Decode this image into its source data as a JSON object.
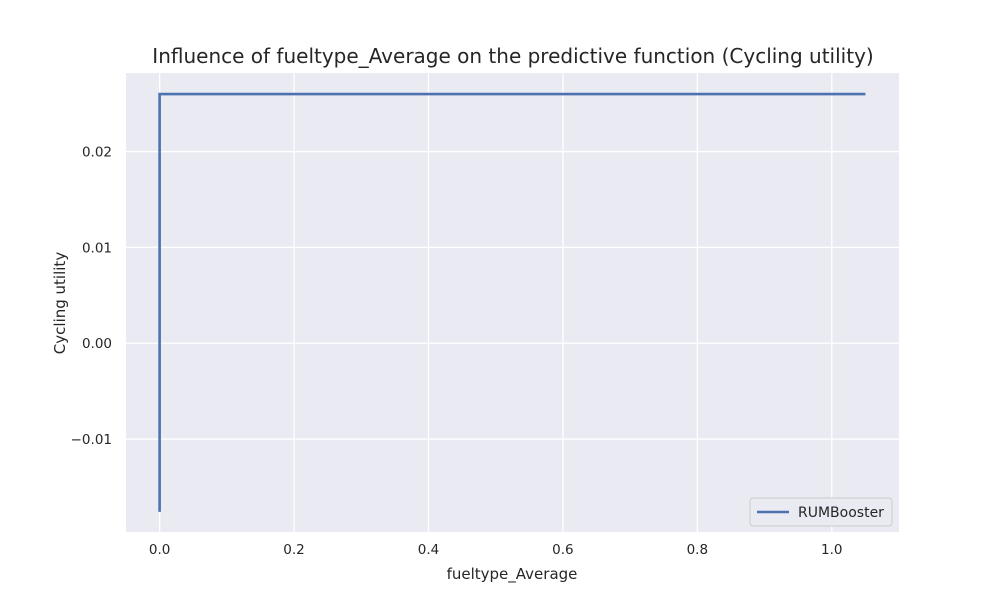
{
  "chart_data": {
    "type": "line",
    "title": "Influence of fueltype_Average on the predictive function (Cycling utility)",
    "xlabel": "fueltype_Average",
    "ylabel": "Cycling utility",
    "xlim": [
      -0.05,
      1.1
    ],
    "ylim": [
      -0.0197,
      0.0282
    ],
    "xticks": [
      0.0,
      0.2,
      0.4,
      0.6,
      0.8,
      1.0
    ],
    "xtick_labels": [
      "0.0",
      "0.2",
      "0.4",
      "0.6",
      "0.8",
      "1.0"
    ],
    "yticks": [
      -0.01,
      0.0,
      0.01,
      0.02
    ],
    "ytick_labels": [
      "−0.01",
      "0.00",
      "0.01",
      "0.02"
    ],
    "grid": true,
    "legend_position": "bottom-right",
    "series": [
      {
        "name": "RUMBooster",
        "color": "#4c72b0",
        "x": [
          0.0,
          0.0,
          1.05
        ],
        "y": [
          -0.0176,
          0.026,
          0.026
        ]
      }
    ]
  }
}
